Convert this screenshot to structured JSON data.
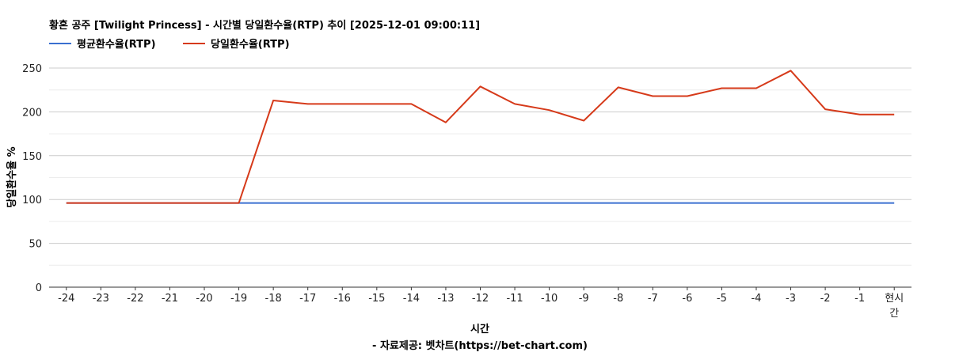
{
  "chart_data": {
    "type": "line",
    "title": "황혼 공주 [Twilight Princess] - 시간별 당일환수율(RTP) 추이 [2025-12-01 09:00:11]",
    "xlabel": "시간",
    "ylabel": "당일환수율 %",
    "source": "- 자료제공: 벳차트(https://bet-chart.com)",
    "categories": [
      "-24",
      "-23",
      "-22",
      "-21",
      "-20",
      "-19",
      "-18",
      "-17",
      "-16",
      "-15",
      "-14",
      "-13",
      "-12",
      "-11",
      "-10",
      "-9",
      "-8",
      "-7",
      "-6",
      "-5",
      "-4",
      "-3",
      "-2",
      "-1",
      "현시간"
    ],
    "ylim": [
      0,
      250
    ],
    "yticks": [
      0,
      50,
      100,
      150,
      200,
      250
    ],
    "grid": true,
    "legend_position": "top-left",
    "series": [
      {
        "name": "평균환수율(RTP)",
        "color": "#3a6fd0",
        "values": [
          96,
          96,
          96,
          96,
          96,
          96,
          96,
          96,
          96,
          96,
          96,
          96,
          96,
          96,
          96,
          96,
          96,
          96,
          96,
          96,
          96,
          96,
          96,
          96,
          96
        ]
      },
      {
        "name": "당일환수율(RTP)",
        "color": "#d63a1a",
        "values": [
          96,
          96,
          96,
          96,
          96,
          96,
          213,
          209,
          209,
          209,
          209,
          188,
          229,
          209,
          202,
          190,
          228,
          218,
          218,
          227,
          227,
          247,
          203,
          197,
          197
        ]
      }
    ]
  }
}
